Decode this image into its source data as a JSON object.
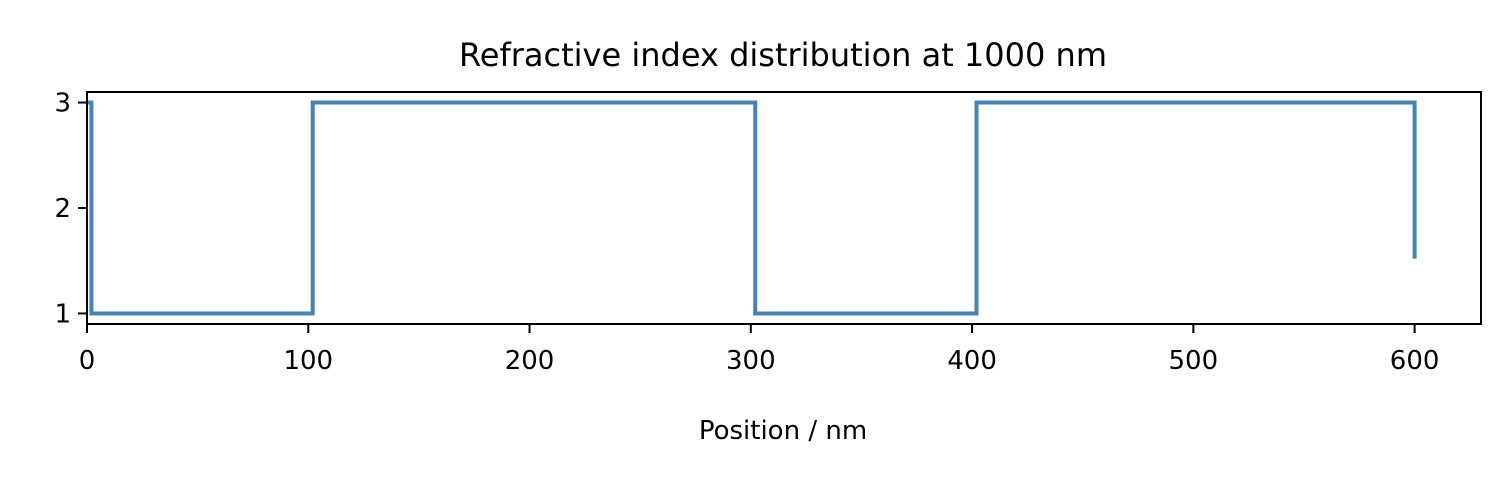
{
  "chart_data": {
    "type": "line",
    "title": "Refractive index distribution at  1000 nm",
    "xlabel": "Position / nm",
    "ylabel": "",
    "xlim": [
      0,
      630
    ],
    "ylim": [
      0.9,
      3.1
    ],
    "xticks": [
      0,
      100,
      200,
      300,
      400,
      500,
      600
    ],
    "yticks": [
      1,
      2,
      3
    ],
    "grid": false,
    "line_color": "#4682b4",
    "series": [
      {
        "x": [
          0,
          2,
          2,
          102,
          102,
          302,
          302,
          402,
          402,
          600,
          600
        ],
        "y": [
          3,
          3,
          1,
          1,
          3,
          3,
          1,
          1,
          3,
          3,
          1.52
        ]
      }
    ]
  }
}
